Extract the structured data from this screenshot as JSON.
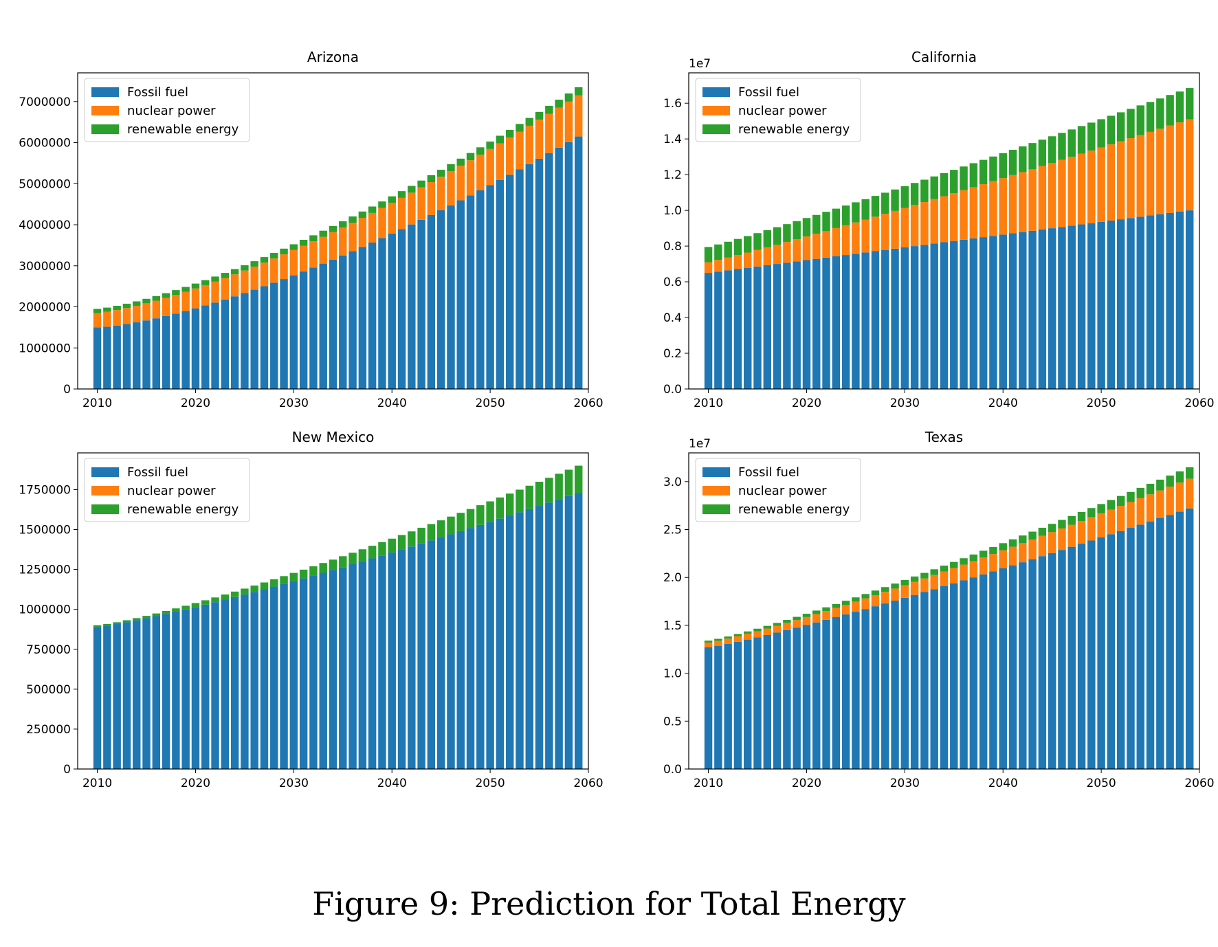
{
  "caption": "Figure 9: Prediction for Total Energy",
  "colors": {
    "fossil": "#1f77b4",
    "nuclear": "#ff7f0e",
    "renewable": "#2ca02c"
  },
  "legend_labels": [
    "Fossil fuel",
    "nuclear power",
    "renewable energy"
  ],
  "chart_data": [
    {
      "type": "bar",
      "stacked": true,
      "title": "Arizona",
      "x": {
        "start": 2010,
        "end": 2059,
        "step": 1
      },
      "xlim": [
        2008,
        2060
      ],
      "xticks": [
        2010,
        2020,
        2030,
        2040,
        2050,
        2060
      ],
      "ylim": [
        0,
        7700000
      ],
      "yticks": [
        0,
        1000000,
        2000000,
        3000000,
        4000000,
        5000000,
        6000000,
        7000000
      ],
      "ytick_labels": [
        "0",
        "1000000",
        "2000000",
        "3000000",
        "4000000",
        "5000000",
        "6000000",
        "7000000"
      ],
      "offset_label": "",
      "legend": "upper left",
      "series": [
        {
          "name": "Fossil fuel",
          "start": 1500000,
          "end": 6150000,
          "curve": 1.45
        },
        {
          "name": "nuclear power",
          "start": 350000,
          "end": 1000000,
          "curve": 1.0
        },
        {
          "name": "renewable energy",
          "start": 100000,
          "end": 200000,
          "curve": 1.0
        }
      ]
    },
    {
      "type": "bar",
      "stacked": true,
      "title": "California",
      "x": {
        "start": 2010,
        "end": 2059,
        "step": 1
      },
      "xlim": [
        2008,
        2060
      ],
      "xticks": [
        2010,
        2020,
        2030,
        2040,
        2050,
        2060
      ],
      "ylim": [
        0,
        17700000
      ],
      "yticks": [
        0,
        2000000,
        4000000,
        6000000,
        8000000,
        10000000,
        12000000,
        14000000,
        16000000
      ],
      "ytick_labels": [
        "0.0",
        "0.2",
        "0.4",
        "0.6",
        "0.8",
        "1.0",
        "1.2",
        "1.4",
        "1.6"
      ],
      "offset_label": "1e7",
      "legend": "upper left",
      "series": [
        {
          "name": "Fossil fuel",
          "start": 6500000,
          "end": 10000000,
          "curve": 1.0
        },
        {
          "name": "nuclear power",
          "start": 600000,
          "end": 5100000,
          "curve": 1.15
        },
        {
          "name": "renewable energy",
          "start": 850000,
          "end": 1750000,
          "curve": 1.0
        }
      ]
    },
    {
      "type": "bar",
      "stacked": true,
      "title": "New Mexico",
      "x": {
        "start": 2010,
        "end": 2059,
        "step": 1
      },
      "xlim": [
        2008,
        2060
      ],
      "xticks": [
        2010,
        2020,
        2030,
        2040,
        2050,
        2060
      ],
      "ylim": [
        0,
        1980000
      ],
      "yticks": [
        0,
        250000,
        500000,
        750000,
        1000000,
        1250000,
        1500000,
        1750000
      ],
      "ytick_labels": [
        "0",
        "250000",
        "500000",
        "750000",
        "1000000",
        "1250000",
        "1500000",
        "1750000"
      ],
      "offset_label": "",
      "legend": "upper left",
      "series": [
        {
          "name": "Fossil fuel",
          "start": 890000,
          "end": 1730000,
          "curve": 1.2
        },
        {
          "name": "nuclear power",
          "start": 0,
          "end": 0,
          "curve": 1.0
        },
        {
          "name": "renewable energy",
          "start": 10000,
          "end": 170000,
          "curve": 1.5
        }
      ]
    },
    {
      "type": "bar",
      "stacked": true,
      "title": "Texas",
      "x": {
        "start": 2010,
        "end": 2059,
        "step": 1
      },
      "xlim": [
        2008,
        2060
      ],
      "xticks": [
        2010,
        2020,
        2030,
        2040,
        2050,
        2060
      ],
      "ylim": [
        0,
        33000000
      ],
      "yticks": [
        0,
        5000000,
        10000000,
        15000000,
        20000000,
        25000000,
        30000000
      ],
      "ytick_labels": [
        "0.0",
        "0.5",
        "1.0",
        "1.5",
        "2.0",
        "2.5",
        "3.0"
      ],
      "offset_label": "1e7",
      "legend": "upper left",
      "series": [
        {
          "name": "Fossil fuel",
          "start": 12700000,
          "end": 27200000,
          "curve": 1.15
        },
        {
          "name": "nuclear power",
          "start": 500000,
          "end": 3100000,
          "curve": 1.3
        },
        {
          "name": "renewable energy",
          "start": 200000,
          "end": 1200000,
          "curve": 1.2
        }
      ]
    }
  ]
}
